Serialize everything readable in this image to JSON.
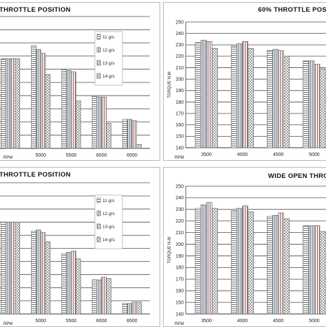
{
  "chart_data": [
    {
      "type": "bar",
      "title": "THROTTLE POSITION",
      "xlabel": "RPM",
      "ylabel": "",
      "categories": [
        "",
        "5000",
        "5500",
        "6000",
        "6500"
      ],
      "ylim": [
        0,
        100
      ],
      "show_yticks": false,
      "series": [
        {
          "name": "11 g/s",
          "values": [
            68,
            78,
            60,
            40,
            22
          ]
        },
        {
          "name": "12 g/s",
          "values": [
            68,
            75,
            59,
            39,
            22
          ]
        },
        {
          "name": "13 g/s",
          "values": [
            68,
            72,
            58,
            39,
            21
          ]
        },
        {
          "name": "14 g/s",
          "values": [
            68,
            56,
            36,
            19,
            3
          ]
        }
      ],
      "legend": "inside-top-right",
      "grid": true
    },
    {
      "type": "bar",
      "title": "60% THROTTLE POSI",
      "xlabel": "RPM",
      "ylabel": "TORQUE N-M",
      "categories": [
        "3500",
        "4000",
        "4500",
        "5000"
      ],
      "yticks": [
        140,
        150,
        160,
        170,
        180,
        190,
        200,
        210,
        220,
        230,
        240,
        250
      ],
      "ylim": [
        140,
        250
      ],
      "series": [
        {
          "name": "11 g/s",
          "values": [
            232,
            229,
            225,
            216
          ]
        },
        {
          "name": "12 g/s",
          "values": [
            234,
            231,
            226,
            216
          ]
        },
        {
          "name": "13 g/s",
          "values": [
            233,
            233,
            225,
            213
          ]
        },
        {
          "name": "14 g/s",
          "values": [
            227,
            227,
            220,
            209
          ]
        }
      ],
      "legend": "none",
      "grid": true
    },
    {
      "type": "bar",
      "title": "THROTTLE POSITION",
      "xlabel": "RPM",
      "ylabel": "",
      "categories": [
        "",
        "5000",
        "5500",
        "6000",
        "6500"
      ],
      "ylim": [
        0,
        100
      ],
      "show_yticks": false,
      "series": [
        {
          "name": "11 g/s",
          "values": [
            70,
            63,
            46,
            26,
            8
          ]
        },
        {
          "name": "12 g/s",
          "values": [
            70,
            64,
            47,
            26,
            8
          ]
        },
        {
          "name": "13 g/s",
          "values": [
            70,
            62,
            48,
            28,
            9
          ]
        },
        {
          "name": "14 g/s",
          "values": [
            70,
            55,
            42,
            27,
            9
          ]
        }
      ],
      "legend": "inside-top-right",
      "grid": true
    },
    {
      "type": "bar",
      "title": "WIDE OPEN THRO",
      "xlabel": "RPM",
      "ylabel": "TORQUE N-M",
      "categories": [
        "3500",
        "4000",
        "4500",
        "5000"
      ],
      "yticks": [
        140,
        150,
        160,
        170,
        180,
        190,
        200,
        210,
        220,
        230,
        240,
        250
      ],
      "ylim": [
        140,
        250
      ],
      "series": [
        {
          "name": "11 g/s",
          "values": [
            231,
            229,
            224,
            216
          ]
        },
        {
          "name": "12 g/s",
          "values": [
            234,
            231,
            225,
            216
          ]
        },
        {
          "name": "13 g/s",
          "values": [
            236,
            233,
            227,
            216
          ]
        },
        {
          "name": "14 g/s",
          "values": [
            231,
            228,
            222,
            211
          ]
        }
      ],
      "legend": "none",
      "grid": true
    }
  ]
}
